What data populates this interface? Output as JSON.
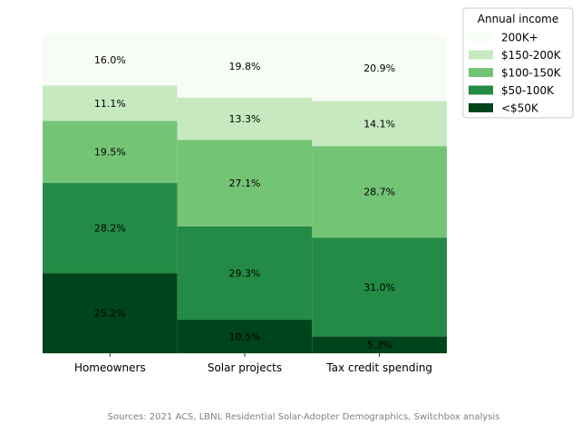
{
  "chart_data": {
    "type": "bar",
    "subtype": "stacked-100",
    "categories": [
      "Homeowners",
      "Solar projects",
      "Tax credit spending"
    ],
    "series": [
      {
        "name": "<$50K",
        "color": "#00441b",
        "values": [
          25.2,
          10.5,
          5.3
        ],
        "labels": [
          "25.2%",
          "10.5%",
          "5.3%"
        ]
      },
      {
        "name": "$50-100K",
        "color": "#238b45",
        "values": [
          28.2,
          29.3,
          31.0
        ],
        "labels": [
          "28.2%",
          "29.3%",
          "31.0%"
        ]
      },
      {
        "name": "$100-150K",
        "color": "#74c476",
        "values": [
          19.5,
          27.1,
          28.7
        ],
        "labels": [
          "19.5%",
          "27.1%",
          "28.7%"
        ]
      },
      {
        "name": "$150-200K",
        "color": "#c7e9c0",
        "values": [
          11.1,
          13.3,
          14.1
        ],
        "labels": [
          "11.1%",
          "13.3%",
          "14.1%"
        ]
      },
      {
        "name": "200K+",
        "color": "#f7fcf5",
        "values": [
          16.0,
          19.8,
          20.9
        ],
        "labels": [
          "16.0%",
          "19.8%",
          "20.9%"
        ]
      }
    ],
    "ylim": [
      0,
      100
    ],
    "xlabel": "",
    "ylabel": "",
    "grid": false,
    "legend": {
      "title": "Annual income",
      "position": "top-right-outside",
      "order": [
        "200K+",
        "$150-200K",
        "$100-150K",
        "$50-100K",
        "<$50K"
      ]
    },
    "source_note": "Sources: 2021 ACS, LBNL Residential Solar-Adopter Demographics, Switchbox analysis"
  }
}
